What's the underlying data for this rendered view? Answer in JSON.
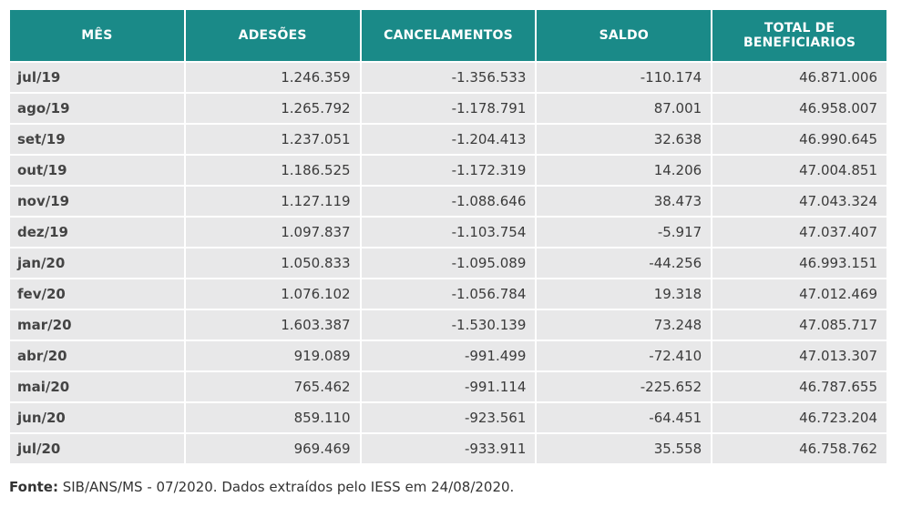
{
  "chart_data": {
    "type": "table",
    "columns": [
      "MÊS",
      "ADESÕES",
      "CANCELAMENTOS",
      "SALDO",
      "TOTAL DE BENEFICIARIOS"
    ],
    "rows": [
      [
        "jul/19",
        "1.246.359",
        "-1.356.533",
        "-110.174",
        "46.871.006"
      ],
      [
        "ago/19",
        "1.265.792",
        "-1.178.791",
        "87.001",
        "46.958.007"
      ],
      [
        "set/19",
        "1.237.051",
        "-1.204.413",
        "32.638",
        "46.990.645"
      ],
      [
        "out/19",
        "1.186.525",
        "-1.172.319",
        "14.206",
        "47.004.851"
      ],
      [
        "nov/19",
        "1.127.119",
        "-1.088.646",
        "38.473",
        "47.043.324"
      ],
      [
        "dez/19",
        "1.097.837",
        "-1.103.754",
        "-5.917",
        "47.037.407"
      ],
      [
        "jan/20",
        "1.050.833",
        "-1.095.089",
        "-44.256",
        "46.993.151"
      ],
      [
        "fev/20",
        "1.076.102",
        "-1.056.784",
        "19.318",
        "47.012.469"
      ],
      [
        "mar/20",
        "1.603.387",
        "-1.530.139",
        "73.248",
        "47.085.717"
      ],
      [
        "abr/20",
        "919.089",
        "-991.499",
        "-72.410",
        "47.013.307"
      ],
      [
        "mai/20",
        "765.462",
        "-991.114",
        "-225.652",
        "46.787.655"
      ],
      [
        "jun/20",
        "859.110",
        "-923.561",
        "-64.451",
        "46.723.204"
      ],
      [
        "jul/20",
        "969.469",
        "-933.911",
        "35.558",
        "46.758.762"
      ]
    ]
  },
  "colors": {
    "header_bg": "#1a8a88",
    "header_text": "#ffffff",
    "cell_bg": "#e8e8e9"
  },
  "source": {
    "label": "Fonte:",
    "text": " SIB/ANS/MS - 07/2020. Dados extraídos pelo IESS em 24/08/2020."
  }
}
